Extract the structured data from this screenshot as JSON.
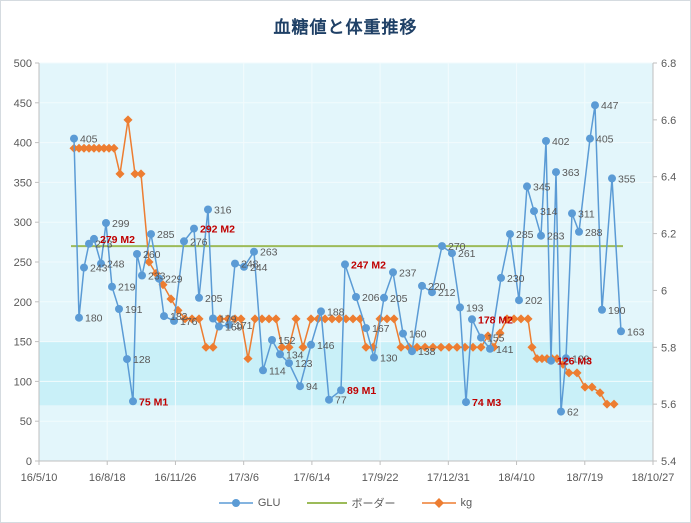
{
  "title": "血糖値と体重推移",
  "colors": {
    "title": "#1F4066",
    "plot_bg": "#E3F6FB",
    "normal_band": "#C9F0F8",
    "axis_line": "#BFBFBF",
    "gridline": "#F2FBFD",
    "label": "#595959",
    "special_label": "#C00000"
  },
  "chart_data": {
    "type": "line",
    "title": "血糖値と体重推移",
    "x_axis": {
      "labels": [
        "16/5/10",
        "16/8/18",
        "16/11/26",
        "17/3/6",
        "17/6/14",
        "17/9/22",
        "17/12/31",
        "18/4/10",
        "18/7/19",
        "18/10/27"
      ]
    },
    "y_left": {
      "range": [
        0,
        500
      ],
      "ticks": [
        "500",
        "450",
        "400",
        "350",
        "300",
        "250",
        "200",
        "150",
        "100",
        "50",
        "0"
      ]
    },
    "y_right": {
      "range": [
        5.4,
        6.8
      ],
      "ticks": [
        "6.8",
        "6.6",
        "6.4",
        "6.2",
        "6",
        "5.8",
        "5.6",
        "5.4"
      ]
    },
    "normal_band": {
      "from": 70,
      "to": 150
    },
    "legend_position": "bottom",
    "series": [
      {
        "name": "GLU",
        "color": "#5B9BD5",
        "marker": "circle",
        "axis": "left",
        "points": [
          [
            73,
            405,
            "405",
            0
          ],
          [
            78,
            180,
            "180",
            0
          ],
          [
            83,
            243,
            "243",
            0
          ],
          [
            88,
            273,
            "273",
            0
          ],
          [
            93,
            279,
            "279 M2",
            1
          ],
          [
            100,
            248,
            "248",
            0
          ],
          [
            105,
            299,
            "299",
            0
          ],
          [
            111,
            219,
            "219",
            0
          ],
          [
            118,
            191,
            "191",
            0
          ],
          [
            126,
            128,
            "128",
            0
          ],
          [
            132,
            75,
            "75 M1",
            1
          ],
          [
            136,
            260,
            "260",
            0
          ],
          [
            141,
            233,
            "233",
            0
          ],
          [
            150,
            285,
            "285",
            0
          ],
          [
            158,
            229,
            "229",
            0
          ],
          [
            163,
            182,
            "182",
            0
          ],
          [
            173,
            176,
            "176",
            0
          ],
          [
            183,
            276,
            "276",
            0
          ],
          [
            193,
            292,
            "292 M2",
            1
          ],
          [
            198,
            205,
            "205",
            0
          ],
          [
            207,
            316,
            "316",
            0
          ],
          [
            212,
            179,
            "179",
            0
          ],
          [
            218,
            169,
            "169",
            0
          ],
          [
            228,
            171,
            "171",
            0
          ],
          [
            234,
            248,
            "248",
            0
          ],
          [
            243,
            244,
            "244",
            0
          ],
          [
            253,
            263,
            "263",
            0
          ],
          [
            262,
            114,
            "114",
            0
          ],
          [
            271,
            152,
            "152",
            0
          ],
          [
            279,
            134,
            "134",
            0
          ],
          [
            288,
            123,
            "123",
            0
          ],
          [
            299,
            94,
            "94",
            0
          ],
          [
            310,
            146,
            "146",
            0
          ],
          [
            320,
            188,
            "188",
            0
          ],
          [
            328,
            77,
            "77",
            0
          ],
          [
            340,
            89,
            "89 M1",
            1
          ],
          [
            344,
            247,
            "247 M2",
            1
          ],
          [
            355,
            206,
            "206",
            0
          ],
          [
            365,
            167,
            "167",
            0
          ],
          [
            373,
            130,
            "130",
            0
          ],
          [
            383,
            205,
            "205",
            0
          ],
          [
            392,
            237,
            "237",
            0
          ],
          [
            402,
            160,
            "160",
            0
          ],
          [
            411,
            138,
            "138",
            0
          ],
          [
            421,
            220,
            "220",
            0
          ],
          [
            431,
            212,
            "212",
            0
          ],
          [
            441,
            270,
            "270",
            0
          ],
          [
            451,
            261,
            "261",
            0
          ],
          [
            459,
            193,
            "193",
            0
          ],
          [
            465,
            74,
            "74 M3",
            1
          ],
          [
            471,
            178,
            "178 M2",
            1
          ],
          [
            480,
            155,
            "155",
            0
          ],
          [
            489,
            141,
            "141",
            0
          ],
          [
            500,
            230,
            "230",
            0
          ],
          [
            509,
            285,
            "285",
            0
          ],
          [
            518,
            202,
            "202",
            0
          ],
          [
            526,
            345,
            "345",
            0
          ],
          [
            533,
            314,
            "314",
            0
          ],
          [
            540,
            283,
            "283",
            0
          ],
          [
            545,
            402,
            "402",
            0
          ],
          [
            550,
            126,
            "126 M3",
            1
          ],
          [
            555,
            363,
            "363",
            0
          ],
          [
            560,
            62,
            "62",
            0
          ],
          [
            565,
            129,
            "129",
            0
          ],
          [
            571,
            311,
            "311",
            0
          ],
          [
            578,
            288,
            "288",
            0
          ],
          [
            589,
            405,
            "405",
            0
          ],
          [
            594,
            447,
            "447",
            0
          ],
          [
            601,
            190,
            "190",
            0
          ],
          [
            611,
            355,
            "355",
            0
          ],
          [
            620,
            163,
            "163",
            0
          ]
        ]
      },
      {
        "name": "ボーダー",
        "color": "#9CBB59",
        "type": "hline",
        "axis": "left",
        "value": 270,
        "x_start": 70,
        "x_end": 622
      },
      {
        "name": "kg",
        "color": "#ED7D31",
        "marker": "diamond",
        "axis": "right",
        "points": [
          [
            73,
            6.5
          ],
          [
            78,
            6.5
          ],
          [
            83,
            6.5
          ],
          [
            88,
            6.5
          ],
          [
            93,
            6.5
          ],
          [
            98,
            6.5
          ],
          [
            103,
            6.5
          ],
          [
            108,
            6.5
          ],
          [
            113,
            6.5
          ],
          [
            119,
            6.41
          ],
          [
            127,
            6.6
          ],
          [
            134,
            6.41
          ],
          [
            140,
            6.41
          ],
          [
            148,
            6.1
          ],
          [
            155,
            6.06
          ],
          [
            162,
            6.02
          ],
          [
            170,
            5.97
          ],
          [
            177,
            5.93
          ],
          [
            184,
            5.9
          ],
          [
            191,
            5.9
          ],
          [
            198,
            5.9
          ],
          [
            205,
            5.8
          ],
          [
            212,
            5.8
          ],
          [
            219,
            5.9
          ],
          [
            227,
            5.9
          ],
          [
            234,
            5.9
          ],
          [
            240,
            5.9
          ],
          [
            247,
            5.76
          ],
          [
            254,
            5.9
          ],
          [
            261,
            5.9
          ],
          [
            268,
            5.9
          ],
          [
            275,
            5.9
          ],
          [
            281,
            5.8
          ],
          [
            288,
            5.8
          ],
          [
            295,
            5.9
          ],
          [
            302,
            5.8
          ],
          [
            310,
            5.9
          ],
          [
            317,
            5.9
          ],
          [
            324,
            5.9
          ],
          [
            331,
            5.9
          ],
          [
            338,
            5.9
          ],
          [
            345,
            5.9
          ],
          [
            352,
            5.9
          ],
          [
            359,
            5.9
          ],
          [
            365,
            5.8
          ],
          [
            372,
            5.8
          ],
          [
            379,
            5.9
          ],
          [
            386,
            5.9
          ],
          [
            393,
            5.9
          ],
          [
            400,
            5.8
          ],
          [
            408,
            5.8
          ],
          [
            416,
            5.8
          ],
          [
            424,
            5.8
          ],
          [
            432,
            5.8
          ],
          [
            440,
            5.8
          ],
          [
            448,
            5.8
          ],
          [
            456,
            5.8
          ],
          [
            464,
            5.8
          ],
          [
            472,
            5.8
          ],
          [
            480,
            5.8
          ],
          [
            487,
            5.84
          ],
          [
            493,
            5.8
          ],
          [
            499,
            5.85
          ],
          [
            506,
            5.9
          ],
          [
            513,
            5.9
          ],
          [
            520,
            5.9
          ],
          [
            527,
            5.9
          ],
          [
            531,
            5.8
          ],
          [
            536,
            5.76
          ],
          [
            541,
            5.76
          ],
          [
            546,
            5.76
          ],
          [
            551,
            5.76
          ],
          [
            556,
            5.76
          ],
          [
            562,
            5.74
          ],
          [
            568,
            5.71
          ],
          [
            576,
            5.71
          ],
          [
            584,
            5.66
          ],
          [
            591,
            5.66
          ],
          [
            599,
            5.64
          ],
          [
            606,
            5.6
          ],
          [
            613,
            5.6
          ]
        ]
      }
    ]
  }
}
